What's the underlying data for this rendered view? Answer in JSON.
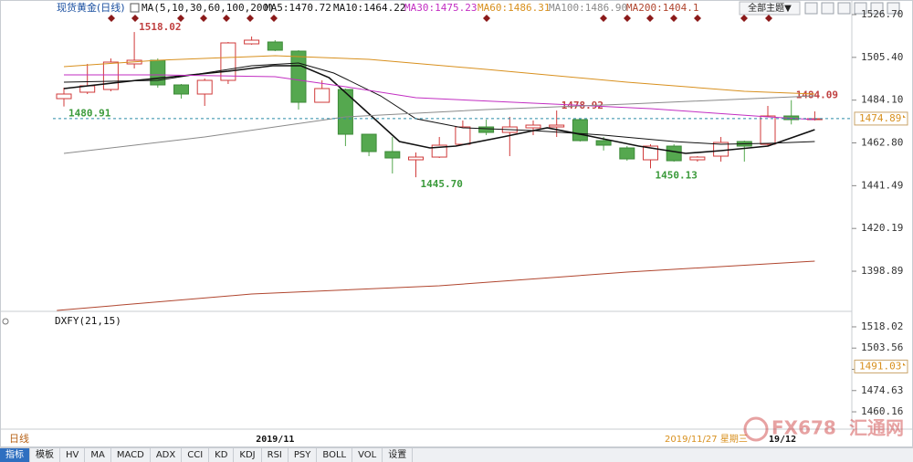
{
  "header": {
    "button": "全部主题▼"
  },
  "chart_data": [
    {
      "type": "candlestick",
      "title": "现货黄金(日线)",
      "indicator": "MA(5,10,30,60,100,200)",
      "categories": [
        null,
        null,
        null,
        null,
        null,
        null,
        null,
        null,
        null,
        "2019/11",
        null,
        null,
        null,
        null,
        null,
        null,
        null,
        null,
        null,
        null,
        null,
        null,
        null,
        null,
        null,
        null,
        null,
        null,
        null,
        null,
        null,
        null,
        null
      ],
      "open": [
        1484.85,
        1488.04,
        1489.4,
        1502.14,
        1503.96,
        1491.68,
        1487.13,
        1493.95,
        1512.14,
        1513.05,
        1508.51,
        1483.03,
        1489.4,
        1467.11,
        1458.47,
        1454.38,
        1455.74,
        1462.11,
        1470.75,
        1468.02,
        1470.3,
        1470.75,
        1474.39,
        1463.93,
        1460.29,
        1454.38,
        1461.2,
        1454.38,
        1456.2,
        1463.48,
        1462.11,
        1476.21,
        1474.39
      ],
      "high": [
        1490.31,
        1502.14,
        1504.87,
        1518.02,
        1504.87,
        1492.13,
        1494.86,
        1513.05,
        1515.78,
        1513.96,
        1508.96,
        1493.95,
        1489.86,
        1467.11,
        1465.75,
        1458.02,
        1465.75,
        1473.94,
        1474.39,
        1475.76,
        1473.94,
        1478.92,
        1474.85,
        1465.75,
        1461.2,
        1462.11,
        1462.11,
        1456.2,
        1465.75,
        1463.93,
        1481.21,
        1484.09,
        1478.49
      ],
      "low": [
        1480.91,
        1487.13,
        1488.49,
        1499.86,
        1490.31,
        1484.85,
        1481.21,
        1492.13,
        1511.69,
        1508.51,
        1479.4,
        1483.03,
        1461.2,
        1456.2,
        1447.56,
        1445.7,
        1455.29,
        1461.66,
        1466.66,
        1456.2,
        1466.66,
        1465.75,
        1463.48,
        1459.0,
        1453.92,
        1450.13,
        1453.47,
        1453.47,
        1453.47,
        1453.47,
        1461.2,
        1472.0,
        1473.94
      ],
      "close": [
        1487.13,
        1491.22,
        1503.05,
        1503.96,
        1491.68,
        1487.13,
        1493.95,
        1512.6,
        1513.96,
        1508.96,
        1483.03,
        1489.86,
        1467.11,
        1458.47,
        1455.29,
        1455.74,
        1461.66,
        1470.75,
        1468.02,
        1470.75,
        1471.66,
        1471.66,
        1463.93,
        1461.66,
        1454.83,
        1461.2,
        1453.92,
        1455.74,
        1463.02,
        1461.2,
        1476.21,
        1474.39,
        1474.85
      ],
      "high_labels": [
        null,
        null,
        null,
        "1518.02",
        null,
        null,
        null,
        null,
        null,
        null,
        null,
        null,
        null,
        null,
        null,
        null,
        null,
        null,
        null,
        null,
        null,
        "1478.92",
        null,
        null,
        null,
        null,
        null,
        null,
        null,
        null,
        null,
        "1484.09",
        null
      ],
      "low_labels": [
        "1480.91",
        null,
        null,
        null,
        null,
        null,
        null,
        null,
        null,
        null,
        null,
        null,
        null,
        null,
        null,
        "1445.70",
        null,
        null,
        null,
        null,
        null,
        null,
        null,
        null,
        null,
        "1450.13",
        null,
        null,
        null,
        null,
        null,
        null,
        null
      ],
      "up_color": "#d03a3a",
      "down_color": "#55a84f",
      "series": [
        {
          "name": "MA5:1470.72",
          "color": "#111111",
          "width": 1.6,
          "x": [
            0,
            3.1,
            7,
            8.9,
            10.1,
            11.3,
            12.8,
            14.3,
            15.6,
            16.7,
            18.7,
            20.6,
            22.2,
            24.5,
            26.5,
            28,
            30,
            32
          ],
          "values": [
            1489.86,
            1493.95,
            1498.5,
            1501.23,
            1501.23,
            1495.32,
            1479.4,
            1463.48,
            1460.29,
            1461.2,
            1465.75,
            1470.3,
            1466.66,
            1461.2,
            1457.56,
            1458.93,
            1461.2,
            1469.39
          ]
        },
        {
          "name": "MA10:1464.22",
          "color": "#111111",
          "width": 1,
          "x": [
            0,
            4,
            8,
            10,
            11.5,
            13.5,
            15,
            17,
            20,
            23,
            26,
            28,
            30,
            32
          ],
          "values": [
            1493.04,
            1493.95,
            1501.23,
            1502.59,
            1497.59,
            1486.22,
            1474.85,
            1470.3,
            1468.93,
            1466.66,
            1463.48,
            1462.11,
            1462.57,
            1463.48
          ]
        },
        {
          "name": "MA30:1475.23",
          "color": "#c22ec2",
          "width": 1,
          "x": [
            0,
            4,
            9,
            12,
            15,
            20,
            25,
            30,
            32
          ],
          "values": [
            1496.68,
            1496.68,
            1495.77,
            1490.77,
            1485.31,
            1482.58,
            1479.85,
            1475.76,
            1474.39
          ]
        },
        {
          "name": "MA60:1486.31",
          "color": "#d8901e",
          "width": 1,
          "x": [
            0,
            4,
            9,
            13,
            18,
            24,
            29,
            32
          ],
          "values": [
            1500.77,
            1503.96,
            1506.23,
            1504.41,
            1499.41,
            1493.04,
            1488.49,
            1487.13
          ]
        },
        {
          "name": "MA100:1486.90",
          "color": "#8a8a8a",
          "width": 1,
          "x": [
            0,
            6,
            12,
            18,
            24,
            32
          ],
          "values": [
            1457.56,
            1465.75,
            1475.76,
            1479.4,
            1482.12,
            1486.22
          ]
        },
        {
          "name": "MA200:1404.1",
          "color": "#b0452e",
          "width": 1,
          "x": [
            -0.3,
            8,
            16,
            24,
            32
          ],
          "values": [
            1379.33,
            1387.52,
            1391.61,
            1398.43,
            1403.89
          ]
        }
      ],
      "ylim": [
        1379.35,
        1531.7
      ],
      "yticks": [
        {
          "value": 1526.7,
          "label": "1526.70"
        },
        {
          "value": 1505.4,
          "label": "1505.40"
        },
        {
          "value": 1484.1,
          "label": "1484.10"
        },
        {
          "value": 1462.8,
          "label": "1462.80"
        },
        1441.49,
        1420.19,
        1398.89
      ],
      "grid": false,
      "last_price": 1474.89
    },
    {
      "type": "indicator",
      "title": "DXFY(21,15)",
      "ylim": [
        1448.37,
        1526.09
      ],
      "yticks": [
        1518.02,
        1503.56,
        1489.09,
        1474.63,
        1460.16
      ],
      "last_value": 1491.03
    }
  ],
  "footer": {
    "period": "日线",
    "date": "2019/11/27 星期三",
    "next": "19/12",
    "watermark": [
      "FX678",
      "汇通网"
    ]
  },
  "toolbar": [
    "指标",
    "模板",
    "HV",
    "MA",
    "MACD",
    "ADX",
    "CCI",
    "KD",
    "KDJ",
    "RSI",
    "PSY",
    "BOLL",
    "VOL",
    "设置"
  ]
}
